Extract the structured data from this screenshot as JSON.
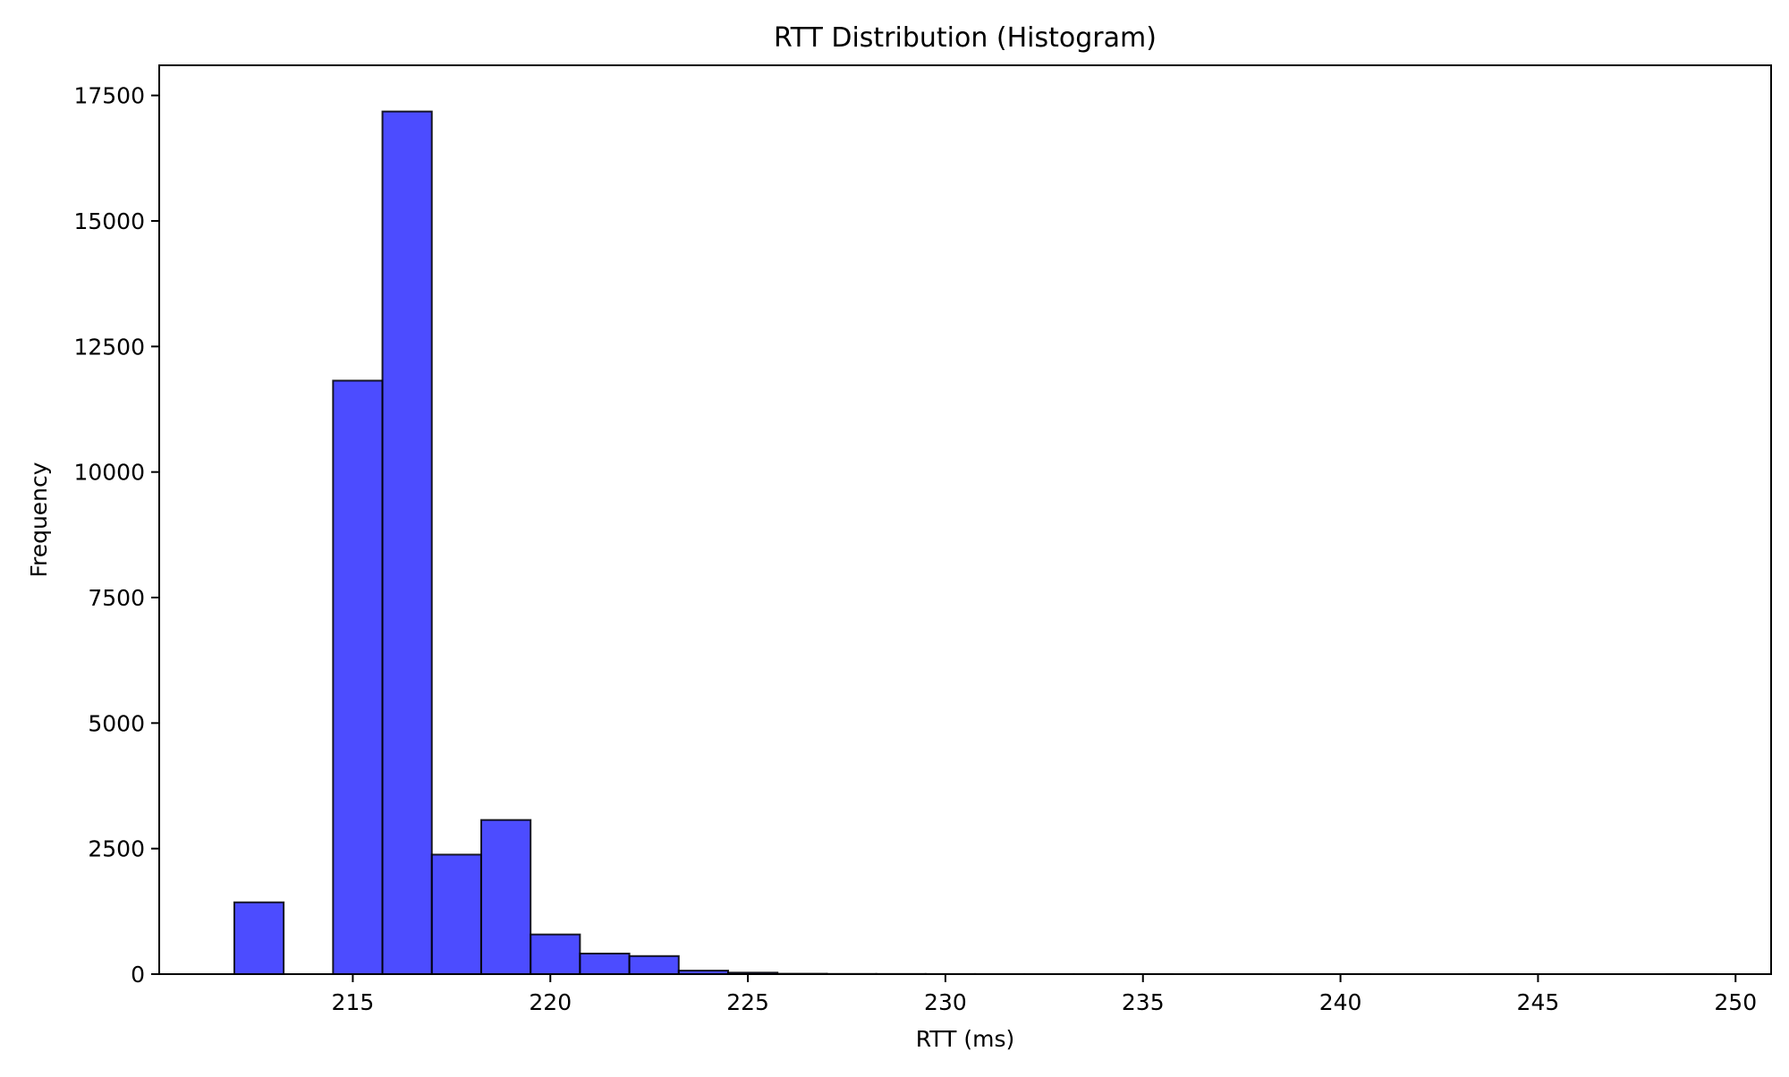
{
  "chart_data": {
    "type": "bar",
    "title": "RTT Distribution (Histogram)",
    "xlabel": "RTT (ms)",
    "ylabel": "Frequency",
    "xlim": [
      210.1,
      250.9
    ],
    "ylim": [
      0,
      18100
    ],
    "xticks": [
      215,
      220,
      225,
      230,
      235,
      240,
      245,
      250
    ],
    "yticks": [
      0,
      2500,
      5000,
      7500,
      10000,
      12500,
      15000,
      17500
    ],
    "grid": false,
    "bar_color": "#0000ff",
    "bar_opacity": 0.7,
    "edge_color": "#000000",
    "bins": [
      {
        "x0": 212.0,
        "x1": 213.25,
        "value": 1430
      },
      {
        "x0": 213.25,
        "x1": 214.5,
        "value": 0
      },
      {
        "x0": 214.5,
        "x1": 215.75,
        "value": 11820
      },
      {
        "x0": 215.75,
        "x1": 217.0,
        "value": 17180
      },
      {
        "x0": 217.0,
        "x1": 218.25,
        "value": 2380
      },
      {
        "x0": 218.25,
        "x1": 219.5,
        "value": 3070
      },
      {
        "x0": 219.5,
        "x1": 220.75,
        "value": 790
      },
      {
        "x0": 220.75,
        "x1": 222.0,
        "value": 410
      },
      {
        "x0": 222.0,
        "x1": 223.25,
        "value": 360
      },
      {
        "x0": 223.25,
        "x1": 224.5,
        "value": 70
      },
      {
        "x0": 224.5,
        "x1": 225.75,
        "value": 30
      },
      {
        "x0": 225.75,
        "x1": 227.0,
        "value": 8
      },
      {
        "x0": 227.0,
        "x1": 228.25,
        "value": 4
      },
      {
        "x0": 228.25,
        "x1": 229.5,
        "value": 3
      },
      {
        "x0": 229.5,
        "x1": 230.75,
        "value": 2
      },
      {
        "x0": 230.75,
        "x1": 232.0,
        "value": 1
      },
      {
        "x0": 232.0,
        "x1": 233.25,
        "value": 1
      },
      {
        "x0": 233.25,
        "x1": 234.5,
        "value": 1
      },
      {
        "x0": 234.5,
        "x1": 235.75,
        "value": 1
      },
      {
        "x0": 235.75,
        "x1": 237.0,
        "value": 0
      },
      {
        "x0": 237.0,
        "x1": 238.25,
        "value": 1
      },
      {
        "x0": 238.25,
        "x1": 239.5,
        "value": 0
      },
      {
        "x0": 239.5,
        "x1": 240.75,
        "value": 1
      },
      {
        "x0": 240.75,
        "x1": 242.0,
        "value": 0
      },
      {
        "x0": 242.0,
        "x1": 243.25,
        "value": 0
      },
      {
        "x0": 243.25,
        "x1": 244.5,
        "value": 1
      },
      {
        "x0": 244.5,
        "x1": 245.75,
        "value": 0
      },
      {
        "x0": 245.75,
        "x1": 247.0,
        "value": 0
      },
      {
        "x0": 247.0,
        "x1": 248.25,
        "value": 0
      },
      {
        "x0": 248.25,
        "x1": 249.5,
        "value": 1
      }
    ]
  }
}
